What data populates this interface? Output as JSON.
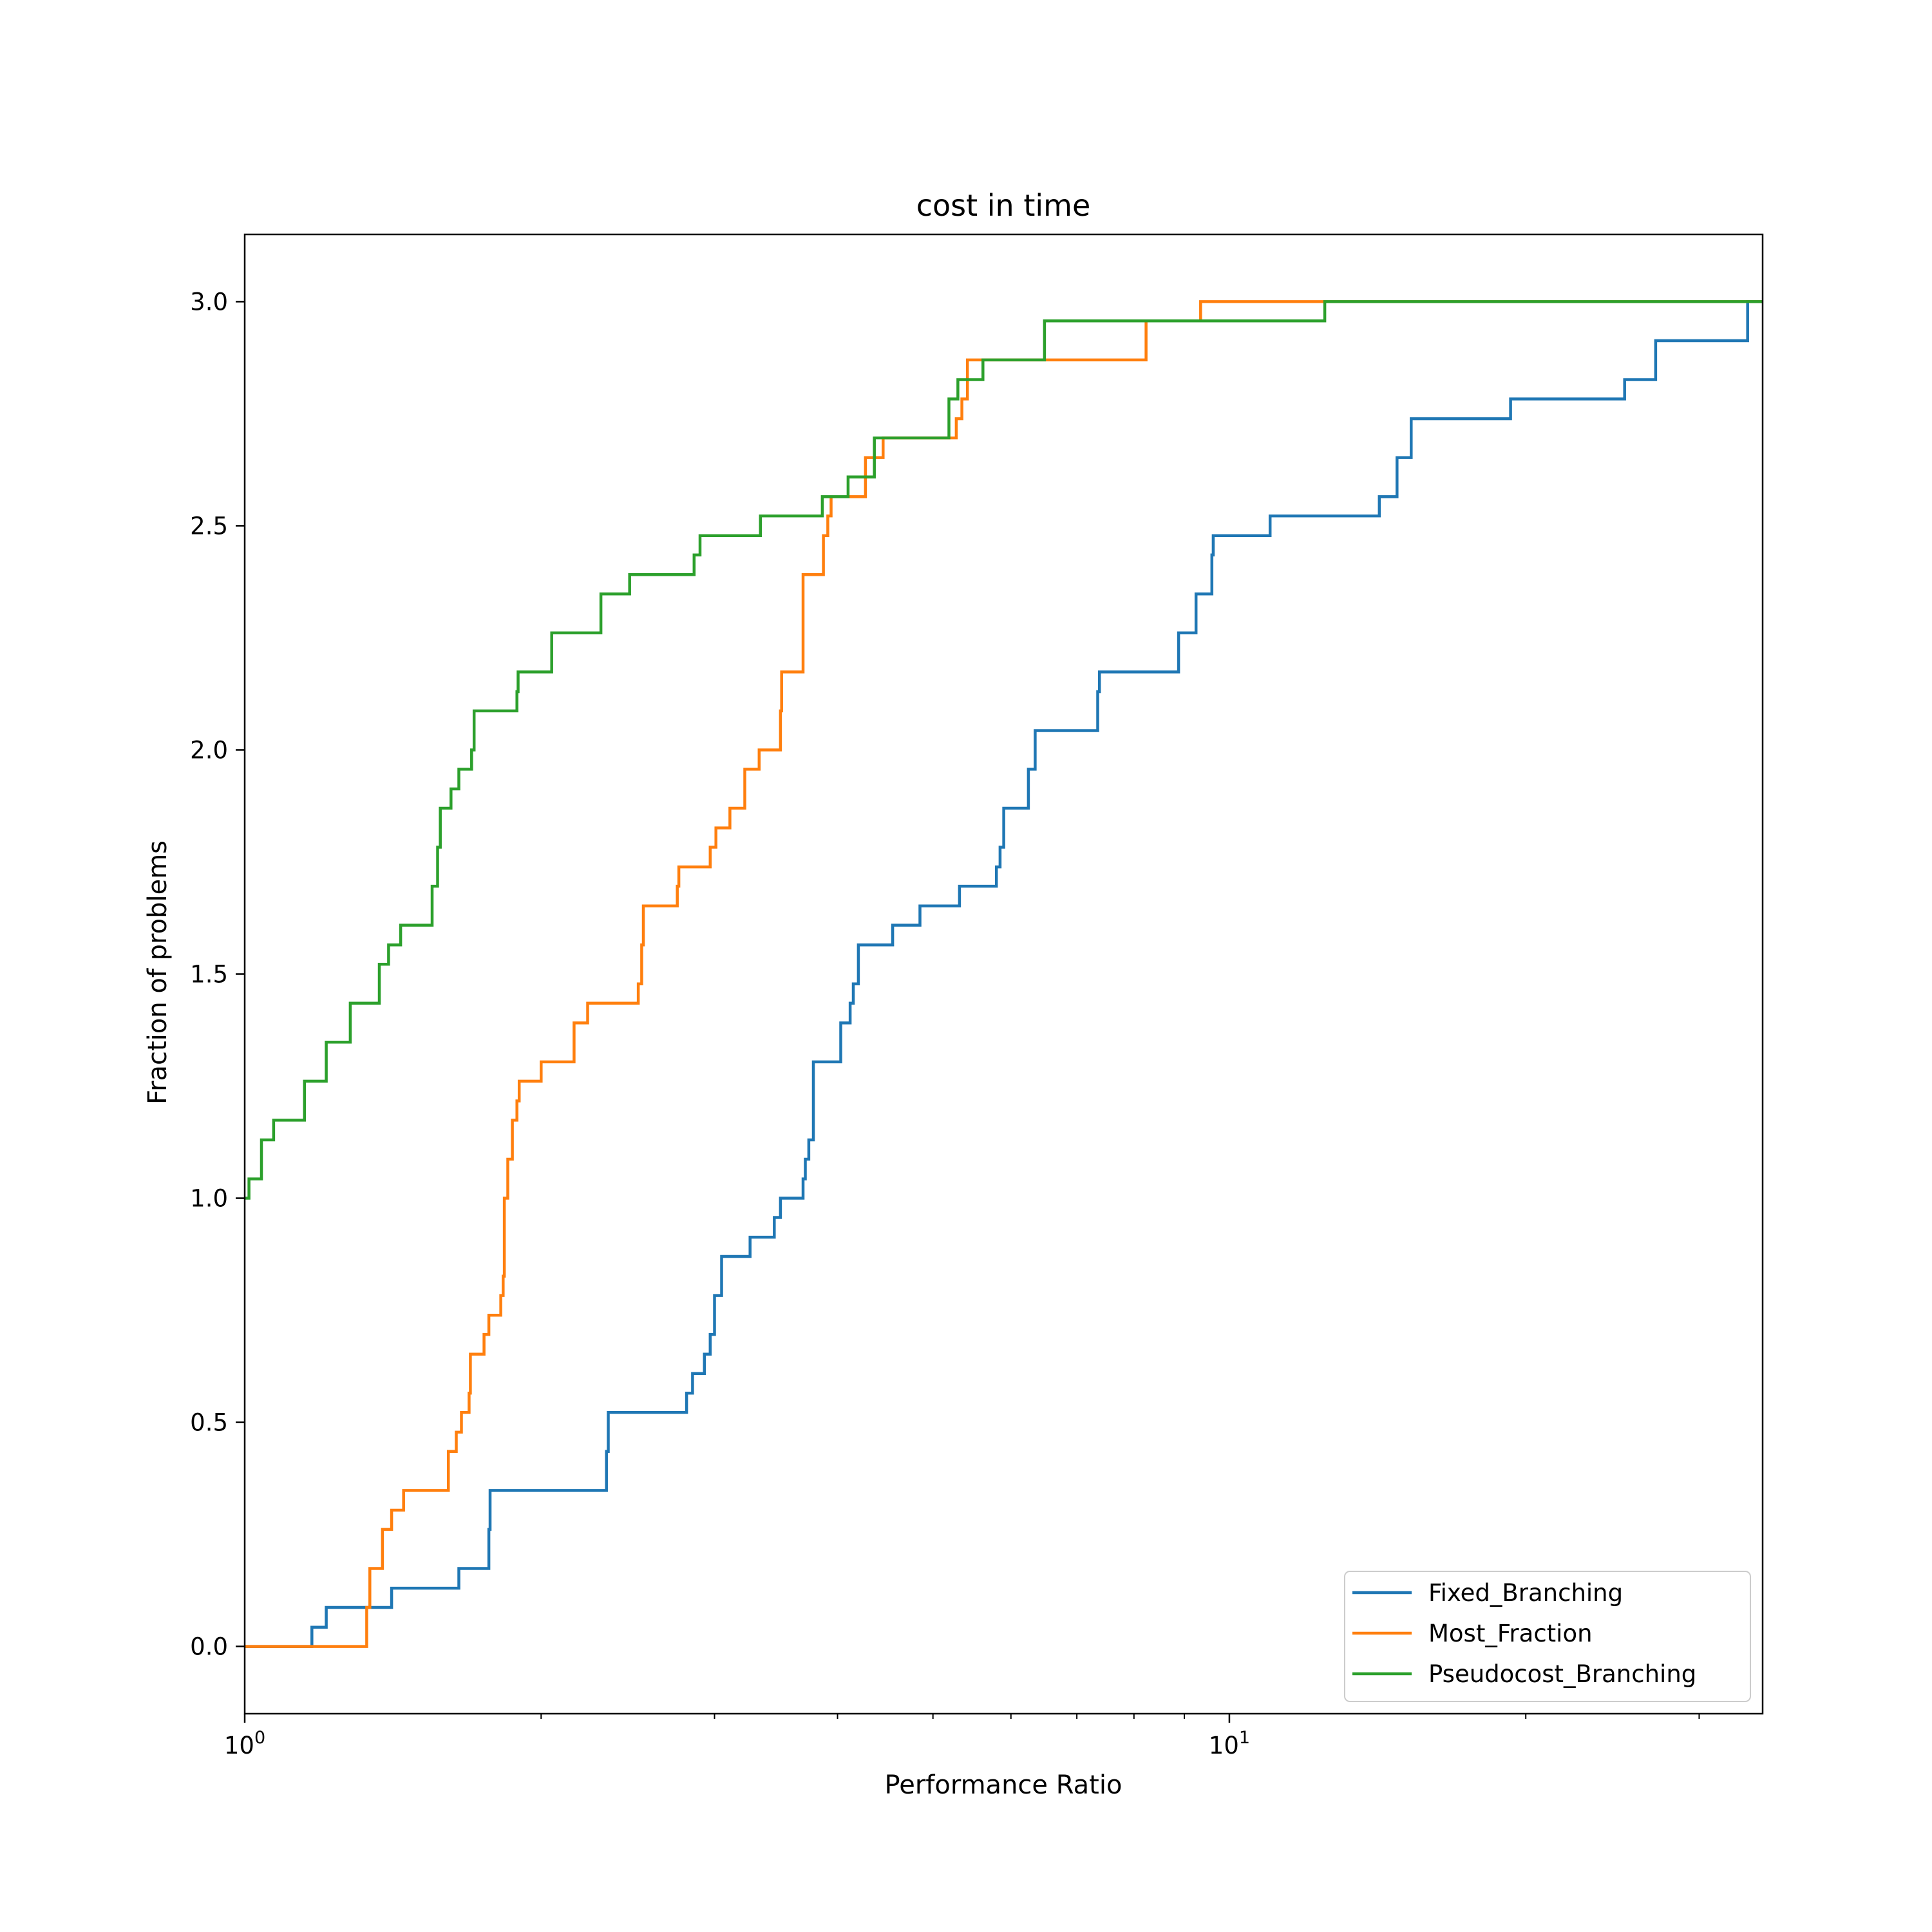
{
  "chart_data": {
    "type": "line",
    "title": "cost in time",
    "xlabel": "Performance Ratio",
    "ylabel": "Fraction of problems",
    "xscale": "log",
    "xlim": [
      1.0,
      34.8
    ],
    "ylim": [
      -0.15,
      3.15
    ],
    "x_major_ticks": [
      {
        "value": 1,
        "label": "10",
        "exp": "0"
      },
      {
        "value": 10,
        "label": "10",
        "exp": "1"
      }
    ],
    "x_minor_ticks": [
      2,
      3,
      4,
      5,
      6,
      7,
      8,
      9,
      20,
      30
    ],
    "y_ticks": [
      {
        "value": 0.0,
        "label": "0.0"
      },
      {
        "value": 0.5,
        "label": "0.5"
      },
      {
        "value": 1.0,
        "label": "1.0"
      },
      {
        "value": 1.5,
        "label": "1.5"
      },
      {
        "value": 2.0,
        "label": "2.0"
      },
      {
        "value": 2.5,
        "label": "2.5"
      },
      {
        "value": 3.0,
        "label": "3.0"
      }
    ],
    "grid": false,
    "legend_position": "lower-right",
    "series": [
      {
        "name": "Fixed_Branching",
        "color": "#1f77b4",
        "step": "post",
        "points": [
          [
            1.0,
            0.0
          ],
          [
            1.17,
            0.043
          ],
          [
            1.21,
            0.087
          ],
          [
            1.41,
            0.13
          ],
          [
            1.65,
            0.174
          ],
          [
            1.77,
            0.261
          ],
          [
            1.775,
            0.348
          ],
          [
            2.33,
            0.435
          ],
          [
            2.34,
            0.522
          ],
          [
            2.81,
            0.565
          ],
          [
            2.85,
            0.609
          ],
          [
            2.93,
            0.652
          ],
          [
            2.97,
            0.696
          ],
          [
            3.0,
            0.783
          ],
          [
            3.05,
            0.87
          ],
          [
            3.26,
            0.913
          ],
          [
            3.45,
            0.957
          ],
          [
            3.5,
            1.0
          ],
          [
            3.69,
            1.043
          ],
          [
            3.71,
            1.087
          ],
          [
            3.74,
            1.13
          ],
          [
            3.78,
            1.304
          ],
          [
            4.03,
            1.391
          ],
          [
            4.12,
            1.435
          ],
          [
            4.15,
            1.478
          ],
          [
            4.2,
            1.565
          ],
          [
            4.55,
            1.609
          ],
          [
            4.85,
            1.652
          ],
          [
            5.32,
            1.696
          ],
          [
            5.8,
            1.739
          ],
          [
            5.85,
            1.783
          ],
          [
            5.9,
            1.87
          ],
          [
            6.25,
            1.957
          ],
          [
            6.35,
            2.043
          ],
          [
            7.35,
            2.13
          ],
          [
            7.38,
            2.174
          ],
          [
            8.88,
            2.261
          ],
          [
            9.25,
            2.348
          ],
          [
            9.6,
            2.435
          ],
          [
            9.63,
            2.478
          ],
          [
            11.0,
            2.522
          ],
          [
            14.2,
            2.565
          ],
          [
            14.8,
            2.652
          ],
          [
            15.3,
            2.739
          ],
          [
            19.3,
            2.783
          ],
          [
            25.2,
            2.826
          ],
          [
            27.1,
            2.913
          ],
          [
            33.6,
            3.0
          ],
          [
            34.8,
            3.0
          ]
        ]
      },
      {
        "name": "Most_Fraction",
        "color": "#ff7f0e",
        "step": "post",
        "points": [
          [
            1.0,
            0.0
          ],
          [
            1.33,
            0.087
          ],
          [
            1.34,
            0.174
          ],
          [
            1.38,
            0.261
          ],
          [
            1.41,
            0.304
          ],
          [
            1.45,
            0.348
          ],
          [
            1.61,
            0.435
          ],
          [
            1.64,
            0.478
          ],
          [
            1.66,
            0.522
          ],
          [
            1.69,
            0.565
          ],
          [
            1.695,
            0.652
          ],
          [
            1.75,
            0.696
          ],
          [
            1.77,
            0.739
          ],
          [
            1.82,
            0.783
          ],
          [
            1.83,
            0.826
          ],
          [
            1.835,
            1.0
          ],
          [
            1.85,
            1.087
          ],
          [
            1.87,
            1.174
          ],
          [
            1.89,
            1.217
          ],
          [
            1.9,
            1.261
          ],
          [
            2.0,
            1.304
          ],
          [
            2.16,
            1.391
          ],
          [
            2.23,
            1.435
          ],
          [
            2.51,
            1.478
          ],
          [
            2.53,
            1.565
          ],
          [
            2.54,
            1.652
          ],
          [
            2.75,
            1.696
          ],
          [
            2.76,
            1.739
          ],
          [
            2.97,
            1.783
          ],
          [
            3.01,
            1.826
          ],
          [
            3.11,
            1.87
          ],
          [
            3.22,
            1.957
          ],
          [
            3.33,
            2.0
          ],
          [
            3.5,
            2.087
          ],
          [
            3.51,
            2.174
          ],
          [
            3.69,
            2.391
          ],
          [
            3.87,
            2.478
          ],
          [
            3.91,
            2.522
          ],
          [
            3.94,
            2.565
          ],
          [
            4.27,
            2.652
          ],
          [
            4.45,
            2.696
          ],
          [
            5.28,
            2.739
          ],
          [
            5.35,
            2.783
          ],
          [
            5.42,
            2.87
          ],
          [
            8.23,
            2.957
          ],
          [
            9.35,
            3.0
          ],
          [
            34.8,
            3.0
          ]
        ]
      },
      {
        "name": "Pseudocost_Branching",
        "color": "#2ca02c",
        "step": "post",
        "points": [
          [
            1.0,
            1.0
          ],
          [
            1.01,
            1.043
          ],
          [
            1.04,
            1.13
          ],
          [
            1.07,
            1.174
          ],
          [
            1.15,
            1.261
          ],
          [
            1.21,
            1.348
          ],
          [
            1.28,
            1.435
          ],
          [
            1.37,
            1.522
          ],
          [
            1.4,
            1.565
          ],
          [
            1.44,
            1.609
          ],
          [
            1.55,
            1.696
          ],
          [
            1.57,
            1.783
          ],
          [
            1.58,
            1.87
          ],
          [
            1.62,
            1.913
          ],
          [
            1.65,
            1.957
          ],
          [
            1.7,
            2.0
          ],
          [
            1.71,
            2.087
          ],
          [
            1.89,
            2.13
          ],
          [
            1.895,
            2.174
          ],
          [
            2.05,
            2.261
          ],
          [
            2.3,
            2.348
          ],
          [
            2.46,
            2.391
          ],
          [
            2.86,
            2.435
          ],
          [
            2.9,
            2.478
          ],
          [
            3.34,
            2.522
          ],
          [
            3.86,
            2.565
          ],
          [
            4.1,
            2.609
          ],
          [
            4.36,
            2.696
          ],
          [
            5.19,
            2.783
          ],
          [
            5.3,
            2.826
          ],
          [
            5.62,
            2.87
          ],
          [
            6.49,
            2.957
          ],
          [
            12.5,
            3.0
          ],
          [
            34.8,
            3.0
          ]
        ]
      }
    ]
  }
}
